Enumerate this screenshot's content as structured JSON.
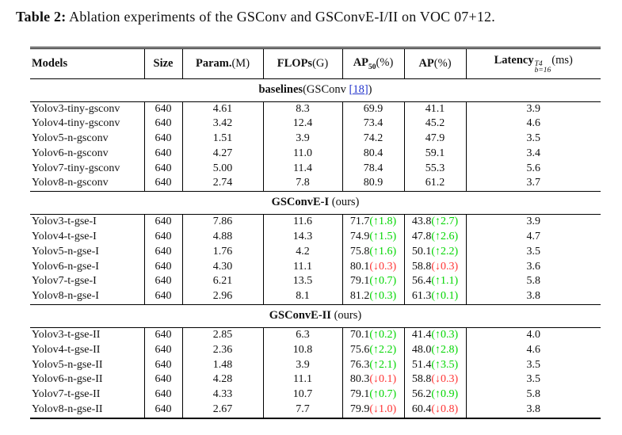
{
  "title": {
    "prefix": "Table 2:",
    "text": " Ablation experiments of the GSConv and GSConvE-I/II on VOC 07+12."
  },
  "colors": {
    "increase": "#00d600",
    "decrease": "#ff3333",
    "citation": "#2233cc",
    "text": "#111111",
    "rule": "#000000"
  },
  "table": {
    "columns": {
      "models": {
        "name": "Models"
      },
      "size": {
        "name": "Size"
      },
      "param": {
        "name": "Param.",
        "suffix": "(M)"
      },
      "flops": {
        "name": "FLOPs",
        "suffix": "(G)"
      },
      "ap50": {
        "name": "AP",
        "sub": "50",
        "suffix": "(%)"
      },
      "ap": {
        "name": "AP",
        "suffix": "(%)"
      },
      "latency": {
        "name": "Latency",
        "sup": "T4",
        "sub": "b=16",
        "suffix": "(ms)"
      }
    },
    "sections": [
      {
        "title": {
          "bold": "baselines",
          "pre": "(GSConv ",
          "citation": "[18]",
          "post": ")"
        },
        "rows": [
          {
            "model": "Yolov3-tiny-gsconv",
            "size": "640",
            "param": "4.61",
            "flops": "8.3",
            "ap50": {
              "value": "69.9"
            },
            "ap": {
              "value": "41.1"
            },
            "latency": "3.9"
          },
          {
            "model": "Yolov4-tiny-gsconv",
            "size": "640",
            "param": "3.42",
            "flops": "12.4",
            "ap50": {
              "value": "73.4"
            },
            "ap": {
              "value": "45.2"
            },
            "latency": "4.6"
          },
          {
            "model": "Yolov5-n-gsconv",
            "size": "640",
            "param": "1.51",
            "flops": "3.9",
            "ap50": {
              "value": "74.2"
            },
            "ap": {
              "value": "47.9"
            },
            "latency": "3.5"
          },
          {
            "model": "Yolov6-n-gsconv",
            "size": "640",
            "param": "4.27",
            "flops": "11.0",
            "ap50": {
              "value": "80.4"
            },
            "ap": {
              "value": "59.1"
            },
            "latency": "3.4"
          },
          {
            "model": "Yolov7-tiny-gsconv",
            "size": "640",
            "param": "5.00",
            "flops": "11.4",
            "ap50": {
              "value": "78.4"
            },
            "ap": {
              "value": "55.3"
            },
            "latency": "5.6"
          },
          {
            "model": "Yolov8-n-gsconv",
            "size": "640",
            "param": "2.74",
            "flops": "7.8",
            "ap50": {
              "value": "80.9"
            },
            "ap": {
              "value": "61.2"
            },
            "latency": "3.7"
          }
        ]
      },
      {
        "title": {
          "bold": "GSConvE-I",
          "post": " (ours)"
        },
        "rows": [
          {
            "model": "Yolov3-t-gse-I",
            "size": "640",
            "param": "7.86",
            "flops": "11.6",
            "ap50": {
              "value": "71.7",
              "change": "↑1.8",
              "trend": "up"
            },
            "ap": {
              "value": "43.8",
              "change": "↑2.7",
              "trend": "up"
            },
            "latency": "3.9"
          },
          {
            "model": "Yolov4-t-gse-I",
            "size": "640",
            "param": "4.88",
            "flops": "14.3",
            "ap50": {
              "value": "74.9",
              "change": "↑1.5",
              "trend": "up"
            },
            "ap": {
              "value": "47.8",
              "change": "↑2.6",
              "trend": "up"
            },
            "latency": "4.7"
          },
          {
            "model": "Yolov5-n-gse-I",
            "size": "640",
            "param": "1.76",
            "flops": "4.2",
            "ap50": {
              "value": "75.8",
              "change": "↑1.6",
              "trend": "up"
            },
            "ap": {
              "value": "50.1",
              "change": "↑2.2",
              "trend": "up"
            },
            "latency": "3.5"
          },
          {
            "model": "Yolov6-n-gse-I",
            "size": "640",
            "param": "4.30",
            "flops": "11.1",
            "ap50": {
              "value": "80.1",
              "change": "↓0.3",
              "trend": "down"
            },
            "ap": {
              "value": "58.8",
              "change": "↓0.3",
              "trend": "down"
            },
            "latency": "3.6"
          },
          {
            "model": "Yolov7-t-gse-I",
            "size": "640",
            "param": "6.21",
            "flops": "13.5",
            "ap50": {
              "value": "79.1",
              "change": "↑0.7",
              "trend": "up"
            },
            "ap": {
              "value": "56.4",
              "change": "↑1.1",
              "trend": "up"
            },
            "latency": "5.8"
          },
          {
            "model": "Yolov8-n-gse-I",
            "size": "640",
            "param": "2.96",
            "flops": "8.1",
            "ap50": {
              "value": "81.2",
              "change": "↑0.3",
              "trend": "up"
            },
            "ap": {
              "value": "61.3",
              "change": "↑0.1",
              "trend": "up"
            },
            "latency": "3.8"
          }
        ]
      },
      {
        "title": {
          "bold": "GSConvE-II",
          "post": " (ours)"
        },
        "rows": [
          {
            "model": "Yolov3-t-gse-II",
            "size": "640",
            "param": "2.85",
            "flops": "6.3",
            "ap50": {
              "value": "70.1",
              "change": "↑0.2",
              "trend": "up"
            },
            "ap": {
              "value": "41.4",
              "change": "↑0.3",
              "trend": "up"
            },
            "latency": "4.0"
          },
          {
            "model": "Yolov4-t-gse-II",
            "size": "640",
            "param": "2.36",
            "flops": "10.8",
            "ap50": {
              "value": "75.6",
              "change": "↑2.2",
              "trend": "up"
            },
            "ap": {
              "value": "48.0",
              "change": "↑2.8",
              "trend": "up"
            },
            "latency": "4.6"
          },
          {
            "model": "Yolov5-n-gse-II",
            "size": "640",
            "param": "1.48",
            "flops": "3.9",
            "ap50": {
              "value": "76.3",
              "change": "↑2.1",
              "trend": "up"
            },
            "ap": {
              "value": "51.4",
              "change": "↑3.5",
              "trend": "up"
            },
            "latency": "3.5"
          },
          {
            "model": "Yolov6-n-gse-II",
            "size": "640",
            "param": "4.28",
            "flops": "11.1",
            "ap50": {
              "value": "80.3",
              "change": "↓0.1",
              "trend": "down"
            },
            "ap": {
              "value": "58.8",
              "change": "↓0.3",
              "trend": "down"
            },
            "latency": "3.5"
          },
          {
            "model": "Yolov7-t-gse-II",
            "size": "640",
            "param": "4.33",
            "flops": "10.7",
            "ap50": {
              "value": "79.1",
              "change": "↑0.7",
              "trend": "up"
            },
            "ap": {
              "value": "56.2",
              "change": "↑0.9",
              "trend": "up"
            },
            "latency": "5.8"
          },
          {
            "model": "Yolov8-n-gse-II",
            "size": "640",
            "param": "2.67",
            "flops": "7.7",
            "ap50": {
              "value": "79.9",
              "change": "↓1.0",
              "trend": "down"
            },
            "ap": {
              "value": "60.4",
              "change": "↓0.8",
              "trend": "down"
            },
            "latency": "3.8"
          }
        ]
      }
    ]
  }
}
